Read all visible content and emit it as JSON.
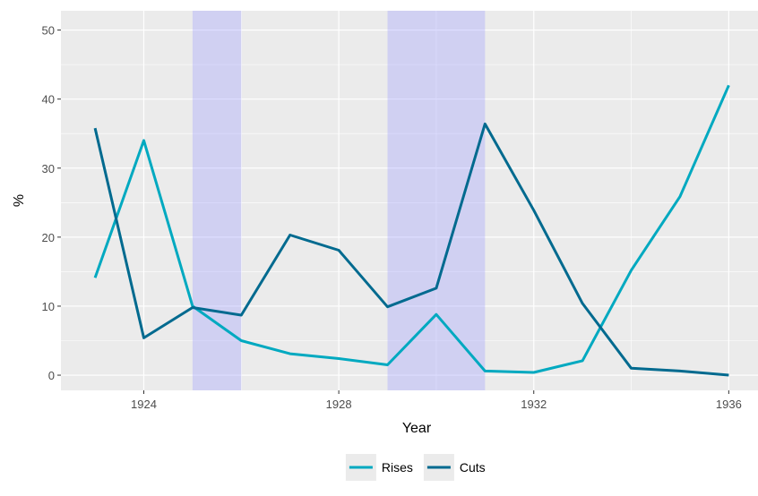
{
  "chart_data": {
    "type": "line",
    "xlabel": "Year",
    "ylabel": "%",
    "xlim": [
      1922.3,
      1936.6
    ],
    "ylim": [
      -2.2,
      52.8
    ],
    "x_ticks": [
      1924,
      1928,
      1932,
      1936
    ],
    "y_ticks": [
      0,
      10,
      20,
      30,
      40,
      50
    ],
    "x": [
      1923,
      1924,
      1925,
      1926,
      1927,
      1928,
      1929,
      1930,
      1931,
      1932,
      1933,
      1934,
      1935,
      1936
    ],
    "series": [
      {
        "name": "Rises",
        "color": "#00A9C0",
        "values": [
          14.1,
          34.0,
          10.0,
          5.0,
          3.1,
          2.4,
          1.5,
          8.8,
          0.6,
          0.4,
          2.1,
          15.2,
          25.9,
          42.0
        ]
      },
      {
        "name": "Cuts",
        "color": "#006A8F",
        "values": [
          35.8,
          5.4,
          9.8,
          8.7,
          20.3,
          18.1,
          9.9,
          12.6,
          36.4,
          23.9,
          10.4,
          1.0,
          0.6,
          0.0
        ]
      }
    ],
    "shaded_periods": [
      {
        "from": 1925,
        "to": 1926
      },
      {
        "from": 1929,
        "to": 1931
      }
    ],
    "shade_color": "#9F9FFF",
    "panel_background": "#EBEBEB",
    "grid": true,
    "legend_position": "bottom"
  }
}
